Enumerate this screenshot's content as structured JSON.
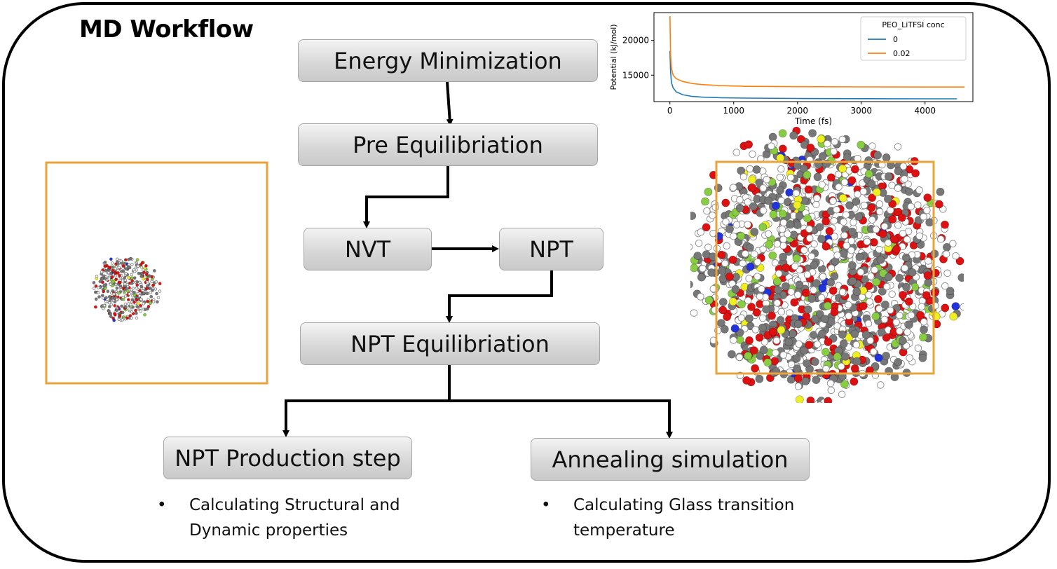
{
  "title": "MD Workflow",
  "steps": {
    "energy_min": "Energy Minimization",
    "pre_equil": "Pre Equilibriation",
    "nvt": "NVT",
    "npt": "NPT",
    "npt_equil": "NPT Equilibriation",
    "npt_prod": "NPT Production step",
    "annealing": "Annealing simulation"
  },
  "bullets": {
    "left": {
      "marker": "•",
      "text": "Calculating Structural and Dynamic properties"
    },
    "right": {
      "marker": "•",
      "text": "Calculating Glass transition temperature"
    }
  },
  "colors": {
    "box_border": "#f0a830",
    "carbon": "#777777",
    "oxygen": "#dd1111",
    "fluorine": "#88cc44",
    "sulfur": "#eeee22",
    "nitrogen": "#2233dd",
    "hydrogen": "#ffffff",
    "series_0": "#1f77b4",
    "series_002": "#ff7f0e"
  },
  "chart_data": {
    "type": "line",
    "title": "",
    "xlabel": "Time (fs)",
    "ylabel": "Potential (kJ/mol)",
    "xlim": [
      -250,
      4750
    ],
    "ylim": [
      11200,
      24000
    ],
    "xticks": [
      0,
      1000,
      2000,
      3000,
      4000
    ],
    "yticks": [
      15000,
      20000
    ],
    "legend_title": "PEO_LiTFSI conc",
    "legend_position": "top-right",
    "series": [
      {
        "name": "0",
        "color": "#1f77b4",
        "x": [
          0,
          10,
          25,
          50,
          100,
          200,
          350,
          500,
          800,
          1200,
          2000,
          3000,
          4000,
          4500
        ],
        "y": [
          18500,
          15500,
          13900,
          13200,
          12600,
          12200,
          11950,
          11850,
          11750,
          11700,
          11650,
          11620,
          11600,
          11600
        ]
      },
      {
        "name": "0.02",
        "color": "#ff7f0e",
        "x": [
          0,
          10,
          25,
          50,
          100,
          200,
          350,
          500,
          800,
          1200,
          2000,
          3000,
          4000,
          4620
        ],
        "y": [
          23500,
          18000,
          16000,
          15000,
          14500,
          14100,
          13800,
          13650,
          13500,
          13400,
          13350,
          13320,
          13300,
          13300
        ]
      }
    ]
  }
}
